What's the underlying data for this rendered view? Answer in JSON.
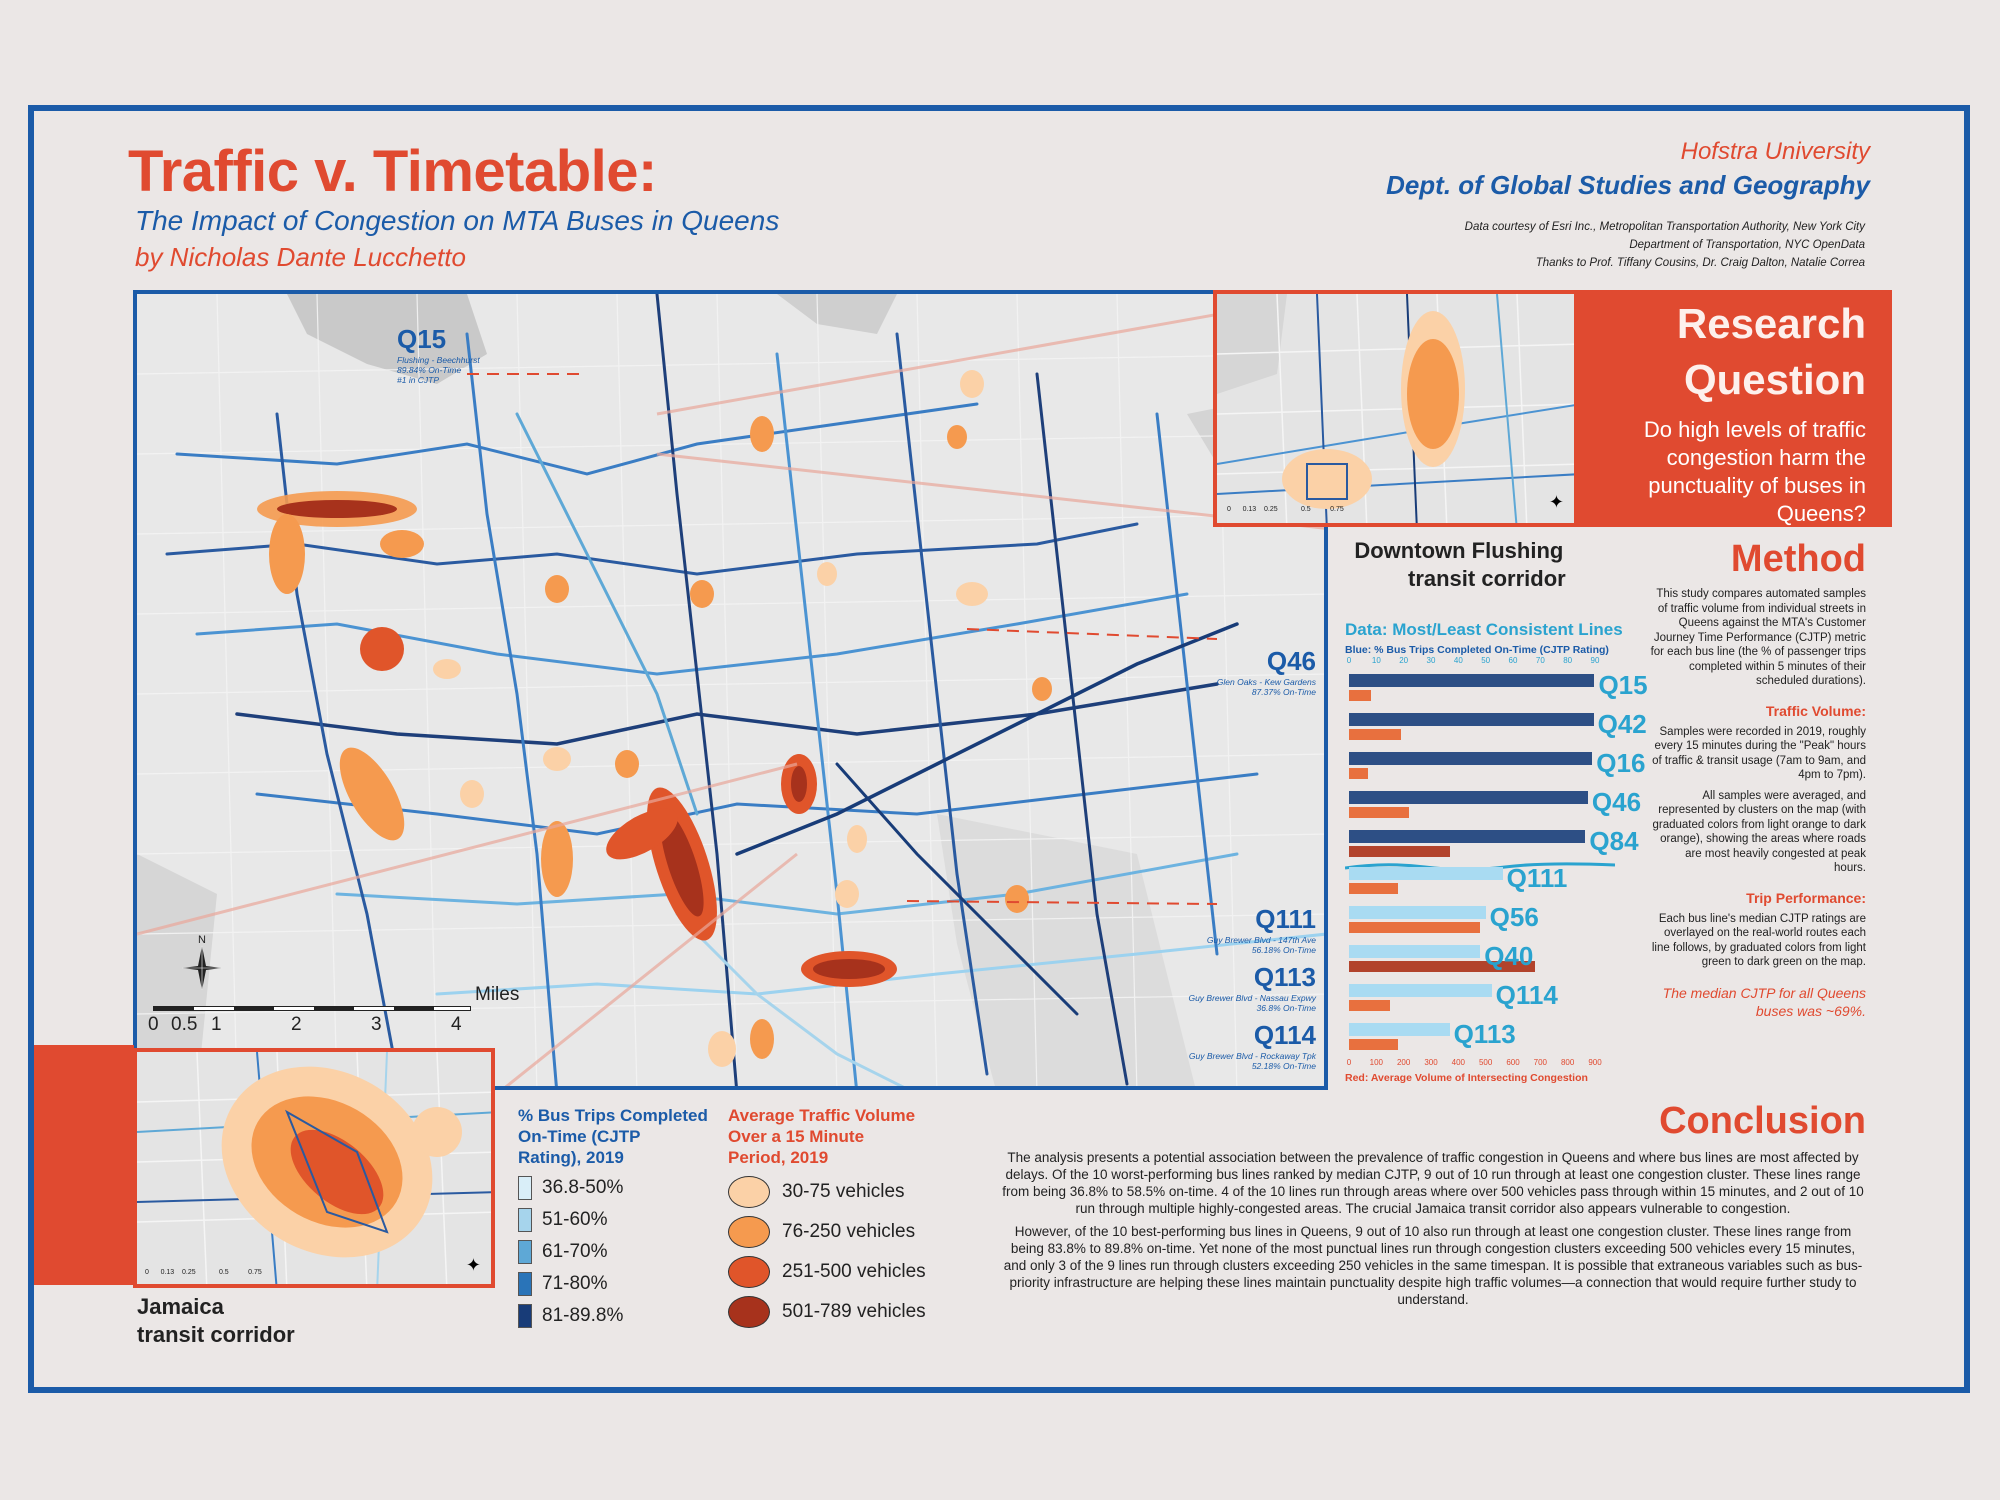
{
  "header": {
    "title": "Traffic v. Timetable:",
    "subtitle": "The Impact of Congestion on MTA Buses in Queens",
    "author": "by Nicholas Dante Lucchetto",
    "university": "Hofstra University",
    "department": "Dept. of Global Studies and Geography",
    "credits": [
      "Data courtesy of Esri Inc., Metropolitan Transportation Authority, New York City",
      "Department of Transportation, NYC OpenData",
      "Thanks to Prof. Tiffany Cousins, Dr. Craig Dalton, Natalie Correa"
    ]
  },
  "research_question": {
    "heading_line1": "Research",
    "heading_line2": "Question",
    "question": "Do high levels of traffic congestion harm the punctuality of buses in Queens?"
  },
  "insets": {
    "flushing": {
      "label_line1": "Downtown Flushing",
      "label_line2": "transit corridor",
      "scale": [
        "0",
        "0.13",
        "0.25",
        "0.5",
        "0.75"
      ],
      "scale_unit": "Miles"
    },
    "jamaica": {
      "label_line1": "Jamaica",
      "label_line2": "transit corridor",
      "scale": [
        "0",
        "0.13",
        "0.25",
        "0.5",
        "0.75"
      ],
      "scale_unit": "Miles"
    }
  },
  "map": {
    "scale_unit": "Miles",
    "scale_ticks": [
      "0",
      "0.5",
      "1",
      "2",
      "3",
      "4"
    ],
    "north_label": "N",
    "callouts": [
      {
        "code": "Q15",
        "route": "Flushing - Beechhurst",
        "stat": "89.84% On-Time",
        "extra": "#1 in CJTP"
      },
      {
        "code": "Q46",
        "route": "Glen Oaks - Kew Gardens",
        "stat": "87.37% On-Time"
      },
      {
        "code": "Q111",
        "route": "Guy Brewer Blvd - 147th Ave",
        "stat": "56.18% On-Time"
      },
      {
        "code": "Q113",
        "route": "Guy Brewer Blvd - Nassau Expwy",
        "stat": "36.8% On-Time"
      },
      {
        "code": "Q114",
        "route": "Guy Brewer Blvd - Rockaway Tpk",
        "stat": "52.18% On-Time"
      }
    ]
  },
  "legend_cjtp": {
    "title": "% Bus Trips Completed On-Time (CJTP Rating), 2019",
    "items": [
      {
        "label": "36.8-50%",
        "color": "#d9eef8"
      },
      {
        "label": "51-60%",
        "color": "#a6d4ec"
      },
      {
        "label": "61-70%",
        "color": "#5ea8d6"
      },
      {
        "label": "71-80%",
        "color": "#2a74b8"
      },
      {
        "label": "81-89.8%",
        "color": "#183c78"
      }
    ]
  },
  "legend_traffic": {
    "title": "Average Traffic Volume Over a 15 Minute Period, 2019",
    "items": [
      {
        "label": "30-75 vehicles",
        "color": "#fbd1a7"
      },
      {
        "label": "76-250 vehicles",
        "color": "#f59a4f"
      },
      {
        "label": "251-500 vehicles",
        "color": "#e0552a"
      },
      {
        "label": "501-789 vehicles",
        "color": "#a7321c"
      }
    ]
  },
  "chart_data": {
    "type": "bar",
    "title": "Data: Most/Least Consistent Lines",
    "top_axis_label": "Blue: % Bus Trips Completed On-Time (CJTP Rating)",
    "bottom_axis_label": "Red: Average Volume of Intersecting Congestion",
    "top_axis_ticks": [
      0,
      10,
      20,
      30,
      40,
      50,
      60,
      70,
      80,
      90
    ],
    "bottom_axis_ticks": [
      0,
      100,
      200,
      300,
      400,
      500,
      600,
      700,
      800,
      900
    ],
    "categories": [
      "Q15",
      "Q42",
      "Q16",
      "Q46",
      "Q84",
      "Q111",
      "Q56",
      "Q40",
      "Q114",
      "Q113"
    ],
    "series": [
      {
        "name": "% On-Time (CJTP)",
        "color_most": "#2d4f85",
        "color_least": "#a9dbf2",
        "values": [
          89.8,
          89.5,
          89.0,
          87.4,
          86.5,
          56.2,
          50.0,
          48.0,
          52.2,
          36.8
        ]
      },
      {
        "name": "Avg Intersecting Congestion Volume",
        "color": "#e8703e",
        "color_highlight": "#b2432c",
        "values": [
          80,
          190,
          70,
          220,
          370,
          180,
          480,
          680,
          150,
          180
        ]
      }
    ],
    "xlim_top": [
      0,
      90
    ],
    "xlim_bottom": [
      0,
      900
    ]
  },
  "method": {
    "heading": "Method",
    "intro": "This study compares automated samples of traffic volume from individual streets in Queens against the MTA's Customer Journey Time Performance (CJTP) metric for each bus line (the % of passenger trips completed within 5 minutes of their scheduled durations).",
    "traffic_heading": "Traffic Volume:",
    "traffic_text": "Samples were recorded in 2019, roughly every 15 minutes during the \"Peak\" hours of traffic & transit usage (7am to 9am, and 4pm to 7pm).",
    "avg_text": "All samples were averaged, and represented by clusters on the map (with graduated colors from light orange to dark orange), showing the areas where roads are most heavily congested at peak hours.",
    "trip_heading": "Trip Performance:",
    "trip_text": "Each bus line's median CJTP ratings are overlayed on the real-world routes each line follows, by graduated colors from light green to dark green on the map.",
    "median": "The median CJTP for all Queens buses was ~69%."
  },
  "conclusion": {
    "heading": "Conclusion",
    "p1": "The analysis presents a potential association between the prevalence of traffic congestion in Queens and where bus lines are most affected by delays. Of the 10 worst-performing bus lines ranked by median CJTP, 9 out of 10 run through at least one congestion cluster. These lines range from being 36.8% to 58.5% on-time. 4 of the 10 lines run through areas where over 500 vehicles pass through within 15 minutes, and 2 out of 10 run through multiple highly-congested areas. The crucial Jamaica transit corridor also appears vulnerable to congestion.",
    "p2": "However, of the 10 best-performing bus lines in Queens, 9 out of 10 also run through at least one congestion cluster. These lines range from being 83.8% to 89.8% on-time. Yet none of the most punctual lines run through congestion clusters exceeding 500 vehicles every 15 minutes, and only 3 of the 9 lines run through clusters exceeding 250 vehicles in the same timespan. It is possible that extraneous variables such as bus-priority infrastructure are helping these lines maintain punctuality despite high traffic volumes—a connection that would require further study to understand."
  }
}
